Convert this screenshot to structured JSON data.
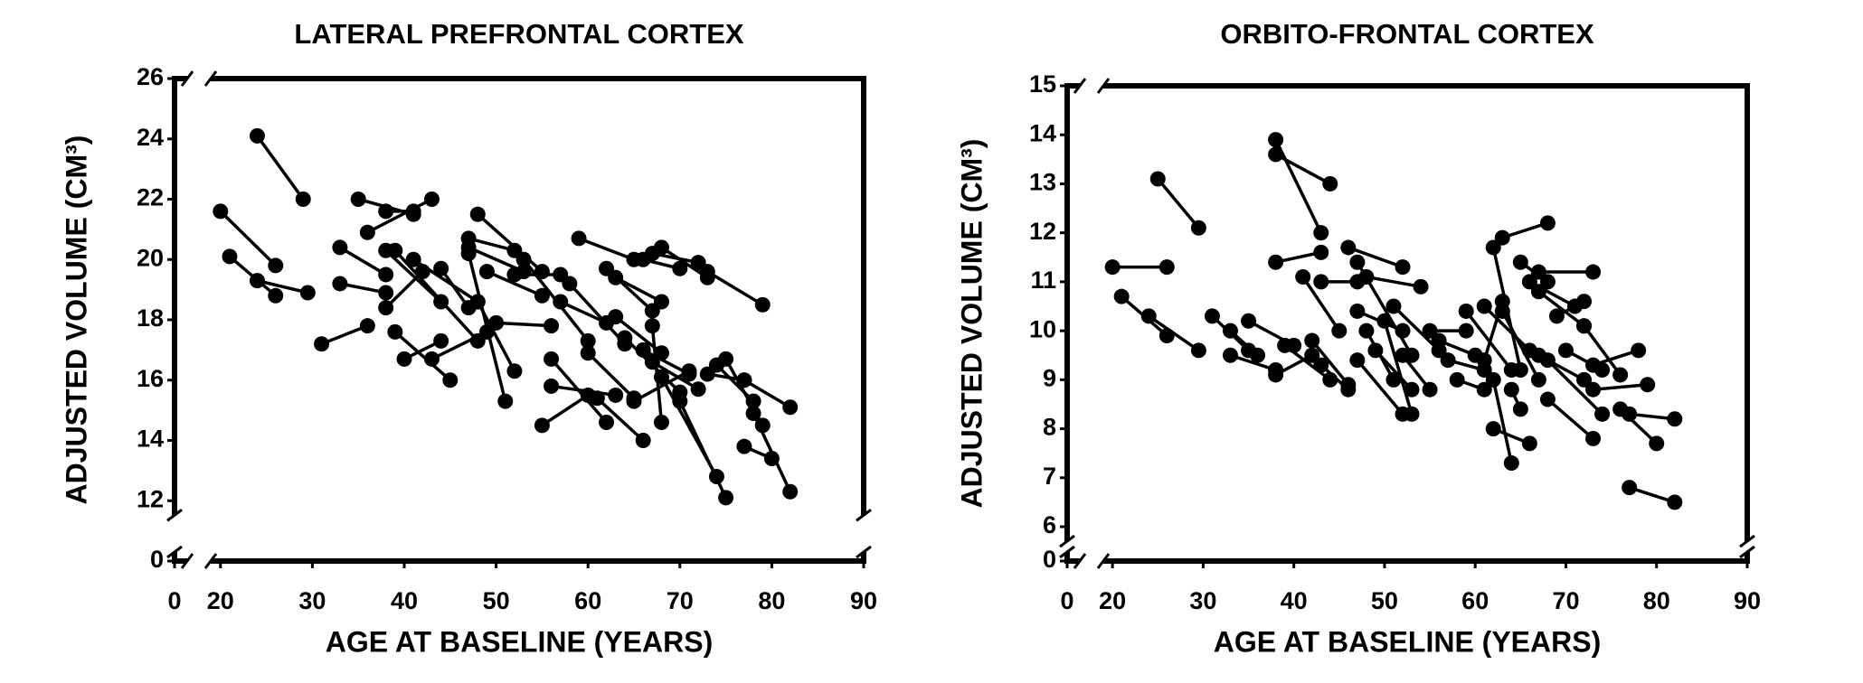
{
  "chart_data": [
    {
      "type": "line",
      "title": "LATERAL PREFRONTAL CORTEX",
      "xlabel": "AGE AT BASELINE (YEARS)",
      "ylabel": "ADJUSTED VOLUME (CM³)",
      "color": "#000000",
      "xlim": [
        0,
        90
      ],
      "xbreak": [
        0,
        15
      ],
      "ylim": [
        0,
        26
      ],
      "ybreak": [
        0,
        10
      ],
      "xticks": [
        0,
        20,
        30,
        40,
        50,
        60,
        70,
        80,
        90
      ],
      "yticks": [
        0,
        12,
        14,
        16,
        18,
        20,
        22,
        24,
        26
      ],
      "series": [
        {
          "x": [
            24,
            29
          ],
          "values": [
            24.1,
            22.0
          ]
        },
        {
          "x": [
            20,
            26
          ],
          "values": [
            21.6,
            19.8
          ]
        },
        {
          "x": [
            21,
            26
          ],
          "values": [
            20.1,
            18.8
          ]
        },
        {
          "x": [
            24,
            29.5
          ],
          "values": [
            19.3,
            18.9
          ]
        },
        {
          "x": [
            31,
            36
          ],
          "values": [
            17.2,
            17.8
          ]
        },
        {
          "x": [
            35,
            41
          ],
          "values": [
            22.0,
            21.5
          ]
        },
        {
          "x": [
            36,
            43
          ],
          "values": [
            20.9,
            22.0
          ]
        },
        {
          "x": [
            38,
            41
          ],
          "values": [
            21.6,
            21.6
          ]
        },
        {
          "x": [
            33,
            38
          ],
          "values": [
            20.4,
            19.5
          ]
        },
        {
          "x": [
            33,
            38
          ],
          "values": [
            19.2,
            18.9
          ]
        },
        {
          "x": [
            38,
            44
          ],
          "values": [
            20.3,
            18.6
          ]
        },
        {
          "x": [
            39,
            48
          ],
          "values": [
            20.3,
            17.3
          ]
        },
        {
          "x": [
            38,
            42
          ],
          "values": [
            18.4,
            19.6
          ]
        },
        {
          "x": [
            39,
            45
          ],
          "values": [
            17.6,
            16.0
          ]
        },
        {
          "x": [
            40,
            44
          ],
          "values": [
            16.7,
            17.3
          ]
        },
        {
          "x": [
            43,
            49
          ],
          "values": [
            16.7,
            17.6
          ]
        },
        {
          "x": [
            44,
            47
          ],
          "values": [
            19.7,
            18.4
          ]
        },
        {
          "x": [
            41,
            48
          ],
          "values": [
            20.0,
            18.6
          ]
        },
        {
          "x": [
            48,
            55
          ],
          "values": [
            21.5,
            19.6
          ]
        },
        {
          "x": [
            47,
            52
          ],
          "values": [
            20.7,
            20.3
          ]
        },
        {
          "x": [
            47,
            53
          ],
          "values": [
            20.4,
            19.6
          ]
        },
        {
          "x": [
            47,
            51
          ],
          "values": [
            20.2,
            15.3
          ]
        },
        {
          "x": [
            48,
            52
          ],
          "values": [
            18.6,
            16.3
          ]
        },
        {
          "x": [
            49,
            55
          ],
          "values": [
            19.6,
            18.8
          ]
        },
        {
          "x": [
            50,
            56
          ],
          "values": [
            17.9,
            17.8
          ]
        },
        {
          "x": [
            52,
            57
          ],
          "values": [
            19.5,
            19.5
          ]
        },
        {
          "x": [
            53,
            60
          ],
          "values": [
            20.0,
            17.3
          ]
        },
        {
          "x": [
            55,
            60
          ],
          "values": [
            14.5,
            15.5
          ]
        },
        {
          "x": [
            56,
            62
          ],
          "values": [
            16.7,
            14.6
          ]
        },
        {
          "x": [
            56,
            63
          ],
          "values": [
            15.8,
            15.5
          ]
        },
        {
          "x": [
            57,
            62
          ],
          "values": [
            18.6,
            17.9
          ]
        },
        {
          "x": [
            59,
            65
          ],
          "values": [
            20.7,
            20.0
          ]
        },
        {
          "x": [
            58,
            64
          ],
          "values": [
            19.2,
            17.2
          ]
        },
        {
          "x": [
            60,
            65
          ],
          "values": [
            16.9,
            15.4
          ]
        },
        {
          "x": [
            61,
            66
          ],
          "values": [
            15.4,
            14.0
          ]
        },
        {
          "x": [
            62,
            67
          ],
          "values": [
            19.7,
            18.3
          ]
        },
        {
          "x": [
            63,
            68
          ],
          "values": [
            18.1,
            16.9
          ]
        },
        {
          "x": [
            64,
            70
          ],
          "values": [
            17.4,
            15.6
          ]
        },
        {
          "x": [
            65,
            71
          ],
          "values": [
            15.3,
            16.3
          ]
        },
        {
          "x": [
            66,
            70
          ],
          "values": [
            20.0,
            19.7
          ]
        },
        {
          "x": [
            67,
            72
          ],
          "values": [
            20.2,
            19.9
          ]
        },
        {
          "x": [
            68,
            73
          ],
          "values": [
            20.4,
            19.4
          ]
        },
        {
          "x": [
            67,
            72
          ],
          "values": [
            16.6,
            15.7
          ]
        },
        {
          "x": [
            67,
            68
          ],
          "values": [
            17.8,
            14.6
          ]
        },
        {
          "x": [
            68,
            74
          ],
          "values": [
            16.1,
            12.8
          ]
        },
        {
          "x": [
            70,
            75
          ],
          "values": [
            15.3,
            12.1
          ]
        },
        {
          "x": [
            73,
            77
          ],
          "values": [
            16.2,
            16.0
          ]
        },
        {
          "x": [
            74,
            78
          ],
          "values": [
            16.5,
            15.3
          ]
        },
        {
          "x": [
            75,
            79
          ],
          "values": [
            16.7,
            14.5
          ]
        },
        {
          "x": [
            77,
            80
          ],
          "values": [
            13.8,
            13.4
          ]
        },
        {
          "x": [
            77,
            82
          ],
          "values": [
            16.0,
            15.1
          ]
        },
        {
          "x": [
            78,
            82
          ],
          "values": [
            14.9,
            12.3
          ]
        },
        {
          "x": [
            73,
            79
          ],
          "values": [
            19.6,
            18.5
          ]
        },
        {
          "x": [
            63,
            68
          ],
          "values": [
            19.4,
            18.6
          ]
        },
        {
          "x": [
            66,
            71
          ],
          "values": [
            17.0,
            16.2
          ]
        }
      ]
    },
    {
      "type": "line",
      "title": "ORBITO-FRONTAL CORTEX",
      "xlabel": "AGE AT BASELINE (YEARS)",
      "ylabel": "ADJUSTED VOLUME (CM³)",
      "color": "#000000",
      "xlim": [
        0,
        90
      ],
      "xbreak": [
        0,
        15
      ],
      "ylim": [
        0,
        15
      ],
      "ybreak": [
        0,
        5.3
      ],
      "xticks": [
        0,
        20,
        30,
        40,
        50,
        60,
        70,
        80,
        90
      ],
      "yticks": [
        0,
        6,
        7,
        8,
        9,
        10,
        11,
        12,
        13,
        14,
        15
      ],
      "series": [
        {
          "x": [
            20,
            26
          ],
          "values": [
            11.3,
            11.3
          ]
        },
        {
          "x": [
            21,
            26
          ],
          "values": [
            10.7,
            9.9
          ]
        },
        {
          "x": [
            24,
            29.5
          ],
          "values": [
            10.3,
            9.6
          ]
        },
        {
          "x": [
            25,
            29.5
          ],
          "values": [
            13.1,
            12.1
          ]
        },
        {
          "x": [
            31,
            35
          ],
          "values": [
            10.3,
            9.6
          ]
        },
        {
          "x": [
            33,
            36
          ],
          "values": [
            10.0,
            9.5
          ]
        },
        {
          "x": [
            33,
            38
          ],
          "values": [
            9.5,
            9.2
          ]
        },
        {
          "x": [
            35,
            40
          ],
          "values": [
            10.2,
            9.7
          ]
        },
        {
          "x": [
            38,
            43
          ],
          "values": [
            13.9,
            12.0
          ]
        },
        {
          "x": [
            38,
            44
          ],
          "values": [
            13.6,
            13.0
          ]
        },
        {
          "x": [
            38,
            43
          ],
          "values": [
            11.4,
            11.6
          ]
        },
        {
          "x": [
            38,
            42
          ],
          "values": [
            9.1,
            9.5
          ]
        },
        {
          "x": [
            39,
            44
          ],
          "values": [
            9.7,
            9.0
          ]
        },
        {
          "x": [
            41,
            45
          ],
          "values": [
            11.1,
            10.0
          ]
        },
        {
          "x": [
            42,
            46
          ],
          "values": [
            9.8,
            8.9
          ]
        },
        {
          "x": [
            43,
            47
          ],
          "values": [
            11.0,
            11.0
          ]
        },
        {
          "x": [
            43,
            46
          ],
          "values": [
            9.3,
            8.8
          ]
        },
        {
          "x": [
            46,
            52
          ],
          "values": [
            11.7,
            11.3
          ]
        },
        {
          "x": [
            47,
            53
          ],
          "values": [
            11.4,
            9.5
          ]
        },
        {
          "x": [
            47,
            52
          ],
          "values": [
            10.4,
            10.0
          ]
        },
        {
          "x": [
            47,
            52
          ],
          "values": [
            9.4,
            8.3
          ]
        },
        {
          "x": [
            48,
            54
          ],
          "values": [
            11.1,
            10.9
          ]
        },
        {
          "x": [
            48,
            51
          ],
          "values": [
            10.0,
            9.0
          ]
        },
        {
          "x": [
            49,
            53
          ],
          "values": [
            9.6,
            8.8
          ]
        },
        {
          "x": [
            50,
            53
          ],
          "values": [
            10.2,
            8.3
          ]
        },
        {
          "x": [
            51,
            56
          ],
          "values": [
            10.5,
            9.6
          ]
        },
        {
          "x": [
            52,
            55
          ],
          "values": [
            9.5,
            8.8
          ]
        },
        {
          "x": [
            55,
            59
          ],
          "values": [
            10.0,
            10.0
          ]
        },
        {
          "x": [
            56,
            60
          ],
          "values": [
            9.8,
            9.5
          ]
        },
        {
          "x": [
            57,
            61
          ],
          "values": [
            9.4,
            9.2
          ]
        },
        {
          "x": [
            58,
            61
          ],
          "values": [
            9.0,
            8.8
          ]
        },
        {
          "x": [
            59,
            64
          ],
          "values": [
            10.4,
            9.2
          ]
        },
        {
          "x": [
            61,
            66
          ],
          "values": [
            10.5,
            9.6
          ]
        },
        {
          "x": [
            61,
            63
          ],
          "values": [
            9.4,
            10.6
          ]
        },
        {
          "x": [
            62,
            65
          ],
          "values": [
            11.7,
            9.2
          ]
        },
        {
          "x": [
            62,
            64
          ],
          "values": [
            9.0,
            7.3
          ]
        },
        {
          "x": [
            62,
            66
          ],
          "values": [
            8.0,
            7.7
          ]
        },
        {
          "x": [
            63,
            68
          ],
          "values": [
            11.9,
            12.2
          ]
        },
        {
          "x": [
            63,
            67
          ],
          "values": [
            10.4,
            9.0
          ]
        },
        {
          "x": [
            64,
            65
          ],
          "values": [
            8.8,
            8.4
          ]
        },
        {
          "x": [
            65,
            68
          ],
          "values": [
            11.4,
            11.0
          ]
        },
        {
          "x": [
            66,
            71
          ],
          "values": [
            11.0,
            10.5
          ]
        },
        {
          "x": [
            67,
            72
          ],
          "values": [
            10.8,
            10.1
          ]
        },
        {
          "x": [
            67,
            73
          ],
          "values": [
            11.2,
            11.2
          ]
        },
        {
          "x": [
            67,
            72
          ],
          "values": [
            9.5,
            9.0
          ]
        },
        {
          "x": [
            68,
            73
          ],
          "values": [
            8.6,
            7.8
          ]
        },
        {
          "x": [
            69,
            72
          ],
          "values": [
            10.3,
            10.6
          ]
        },
        {
          "x": [
            70,
            74
          ],
          "values": [
            9.6,
            9.2
          ]
        },
        {
          "x": [
            72,
            76
          ],
          "values": [
            10.1,
            9.1
          ]
        },
        {
          "x": [
            73,
            79
          ],
          "values": [
            8.8,
            8.9
          ]
        },
        {
          "x": [
            76,
            80
          ],
          "values": [
            8.4,
            7.7
          ]
        },
        {
          "x": [
            77,
            82
          ],
          "values": [
            8.3,
            8.2
          ]
        },
        {
          "x": [
            73,
            78
          ],
          "values": [
            9.3,
            9.6
          ]
        },
        {
          "x": [
            77,
            82
          ],
          "values": [
            6.8,
            6.5
          ]
        },
        {
          "x": [
            68,
            74
          ],
          "values": [
            9.4,
            8.3
          ]
        }
      ]
    }
  ]
}
